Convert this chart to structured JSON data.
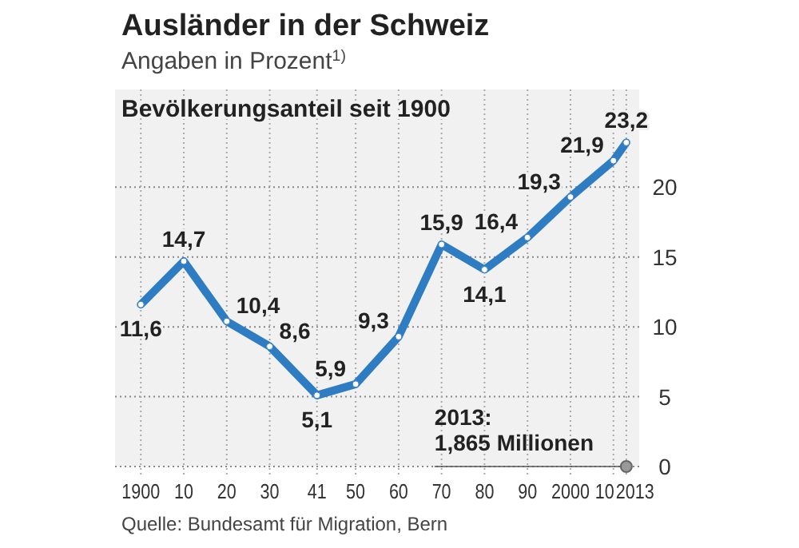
{
  "chart_data": {
    "type": "line",
    "title": "Ausländer in der Schweiz",
    "subtitle": "Angaben in Prozent$^{1)}$",
    "x": [
      1900,
      1910,
      1920,
      1930,
      1941,
      1950,
      1960,
      1970,
      1980,
      1990,
      2000,
      2010,
      2013
    ],
    "series": [
      {
        "color": "#2e7dc2",
        "values": [
          11.6,
          14.7,
          10.4,
          8.6,
          5.1,
          5.9,
          9.3,
          15.9,
          14.1,
          16.4,
          19.3,
          21.9,
          23.2
        ],
        "value_labels": [
          "11,6",
          "14,7",
          "10,4",
          "8,6",
          "5,1",
          "5,9",
          "9,3",
          "15,9",
          "14,1",
          "16,4",
          "19,3",
          "21,9",
          "23,2"
        ]
      }
    ],
    "xlim": [
      1894,
      2016
    ],
    "ylim": [
      0,
      27
    ],
    "xticks": [
      1900,
      {
        "value": 1910,
        "label": "10"
      },
      {
        "value": 1920,
        "label": "20"
      },
      {
        "value": 1930,
        "label": "30"
      },
      {
        "value": 1941,
        "label": "41"
      },
      {
        "value": 1950,
        "label": "50"
      },
      {
        "value": 1960,
        "label": "60"
      },
      {
        "value": 1970,
        "label": "70"
      },
      {
        "value": 1980,
        "label": "80"
      },
      {
        "value": 1990,
        "label": "90"
      },
      2000,
      {
        "value": 2010,
        "label": "10"
      },
      2013
    ],
    "yticks": [
      0,
      5,
      10,
      15,
      20
    ],
    "grid": true,
    "marker": "circle",
    "line_style": "solid",
    "annotations": [
      "Bevölkerungsanteil seit 1900",
      {
        "text": "2013:\n1,865 Millionen",
        "x": 2013,
        "y": 0
      },
      "Quelle: Bundesamt für Migration, Bern"
    ]
  }
}
